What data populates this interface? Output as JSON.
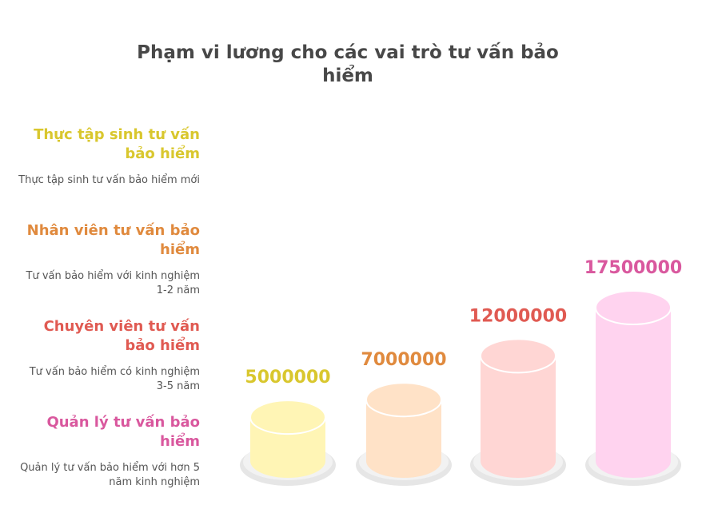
{
  "title": "Phạm vi lương cho các vai trò tư vấn bảo hiểm",
  "chart_data": {
    "type": "bar",
    "title": "Phạm vi lương cho các vai trò tư vấn bảo hiểm",
    "categories": [
      "Thực tập sinh tư vấn bảo hiểm",
      "Nhân viên tư vấn bảo hiểm",
      "Chuyên viên tư vấn bảo hiểm",
      "Quản lý tư vấn bảo hiểm"
    ],
    "descriptions": [
      "Thực tập sinh tư vấn bảo hiểm mới",
      "Tư vấn bảo hiểm với kinh nghiệm 1-2 năm",
      "Tư vấn bảo hiểm có kinh nghiệm 3-5 năm",
      "Quản lý tư vấn bảo hiểm với hơn 5 năm kinh nghiệm"
    ],
    "values": [
      5000000,
      7000000,
      12000000,
      17500000
    ],
    "labels": [
      "5000000",
      "7000000",
      "12000000",
      "17500000"
    ],
    "colors": {
      "text": [
        "#d9c72e",
        "#e08a3e",
        "#e05a52",
        "#d9589e"
      ],
      "fill": [
        "#fff5b5",
        "#ffe2c7",
        "#ffd6d4",
        "#ffd3ef"
      ],
      "top": [
        "#fff8c8",
        "#ffe9d5",
        "#ffdfdd",
        "#ffdcf3"
      ]
    },
    "xlabel": "",
    "ylabel": "",
    "grid": false
  }
}
